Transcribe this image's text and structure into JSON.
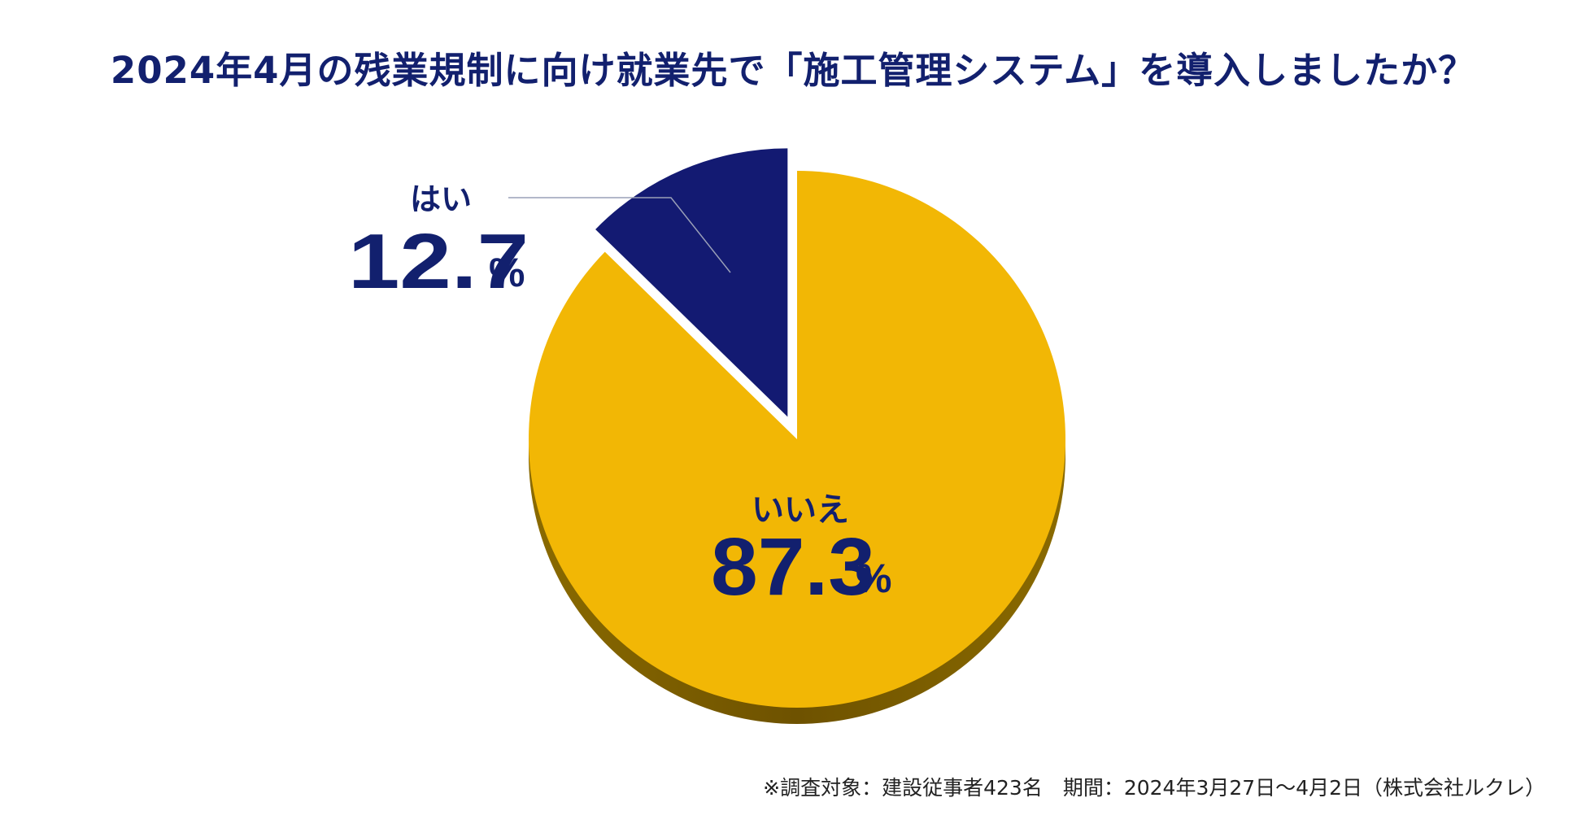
{
  "title": "2024年4月の残業規制に向け就業先で「施工管理システム」を導入しましたか？",
  "chart_data": {
    "type": "pie",
    "title": "2024年4月の残業規制に向け就業先で「施工管理システム」を導入しましたか？",
    "slices": [
      {
        "label": "はい",
        "value": 12.7,
        "value_text": "12.7",
        "unit": "%",
        "color": "#131a72"
      },
      {
        "label": "いいえ",
        "value": 87.3,
        "value_text": "87.3",
        "unit": "%",
        "color": "#f2b705"
      }
    ],
    "exploded": "はい",
    "shadow_color": "#7a5e00"
  },
  "footnote": "※調査対象：建設従事者423名　期間：2024年3月27日〜4月2日（株式会社ルクレ）"
}
